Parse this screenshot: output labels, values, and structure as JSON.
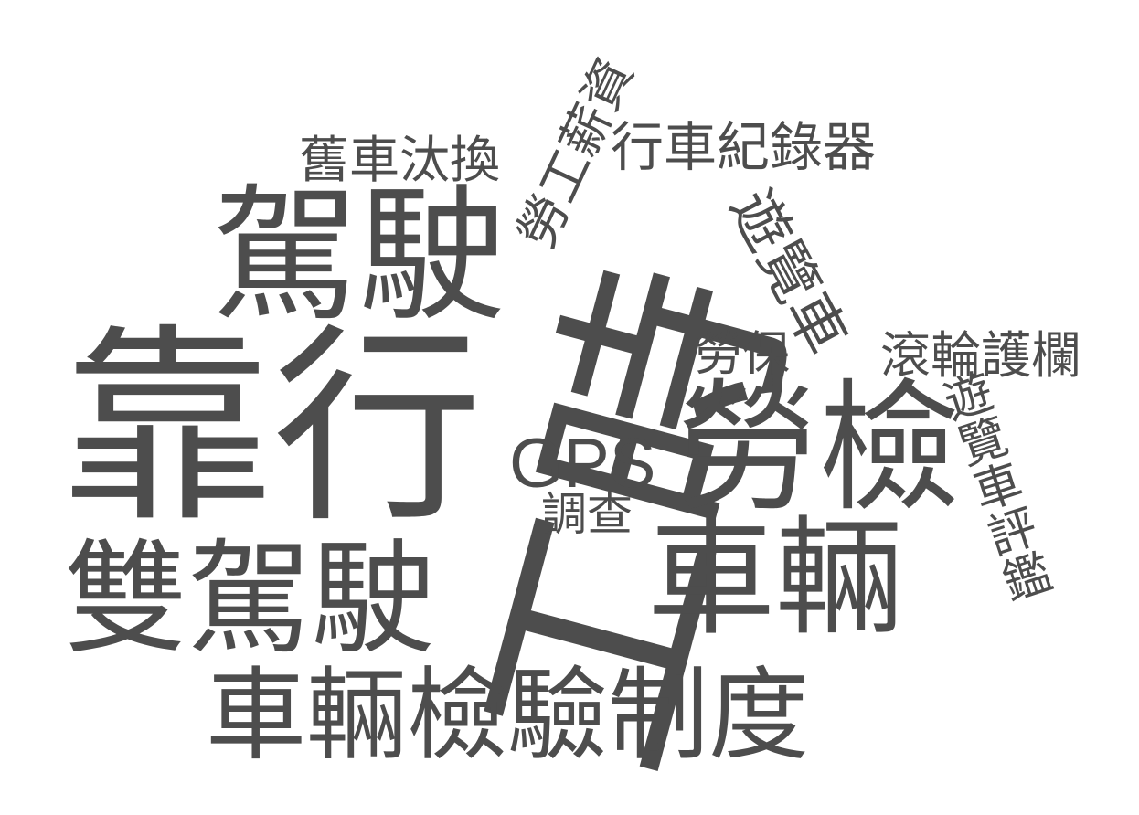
{
  "words": {
    "w1": "靠行",
    "w2": "工時",
    "w3": "駕駛",
    "w4": "雙駕駛",
    "w5": "勞檢",
    "w6": "車輛",
    "w7": "車輛檢驗制度",
    "w8": "舊車汰換",
    "w9": "勞工薪資",
    "w10": "行車紀錄器",
    "w11": "遊覽車",
    "w12": "勞保",
    "w13": "滾輪護欄",
    "w14": "遊覽車評鑑",
    "w15": "GPS",
    "w16": "調查"
  },
  "colors": {
    "word": "#4d4d4d",
    "background": "#ffffff"
  }
}
